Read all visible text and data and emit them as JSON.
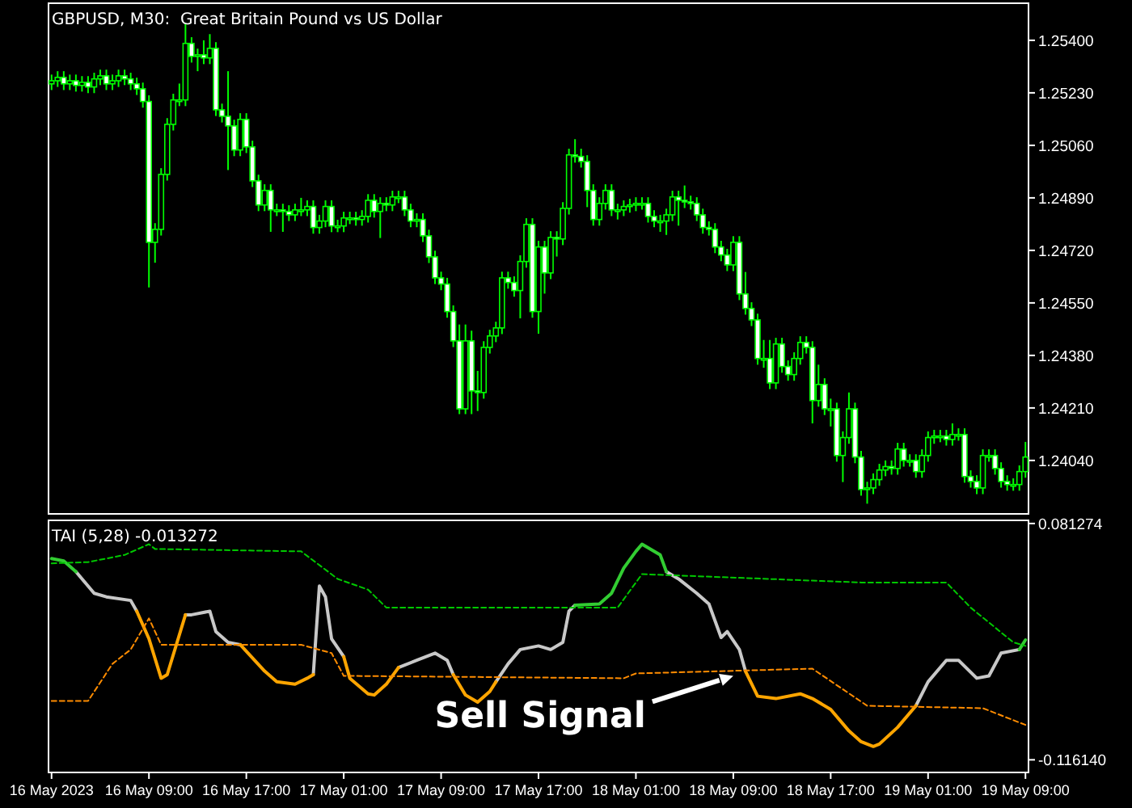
{
  "chart_data": [
    {
      "type": "candlestick",
      "title": "GBPUSD, M30:  Great Britain Pound vs US Dollar",
      "color": "#00ff00",
      "tick_labels": "y",
      "xlim": [
        "2023-05-16T00:45",
        "2023-05-19T09:15"
      ],
      "ylim": [
        1.23867,
        1.2552
      ],
      "yticks": [
        {
          "value": 1.254,
          "label": "1.25400"
        },
        {
          "value": 1.2523,
          "label": "1.25230"
        },
        {
          "value": 1.2506,
          "label": "1.25060"
        },
        {
          "value": 1.2489,
          "label": "1.24890"
        },
        {
          "value": 1.2472,
          "label": "1.24720"
        },
        {
          "value": 1.2455,
          "label": "1.24550"
        },
        {
          "value": 1.2438,
          "label": "1.24380"
        },
        {
          "value": 1.2421,
          "label": "1.24210"
        },
        {
          "value": 1.2404,
          "label": "1.24040"
        }
      ],
      "x": [
        "2023-05-16T01:00",
        "2023-05-16T01:30",
        "2023-05-16T02:00",
        "2023-05-16T02:30",
        "2023-05-16T03:00",
        "2023-05-16T03:30",
        "2023-05-16T04:00",
        "2023-05-16T04:30",
        "2023-05-16T05:00",
        "2023-05-16T05:30",
        "2023-05-16T06:00",
        "2023-05-16T06:30",
        "2023-05-16T07:00",
        "2023-05-16T07:30",
        "2023-05-16T08:00",
        "2023-05-16T08:30",
        "2023-05-16T09:00",
        "2023-05-16T09:30",
        "2023-05-16T10:00",
        "2023-05-16T10:30",
        "2023-05-16T11:00",
        "2023-05-16T11:30",
        "2023-05-16T12:00",
        "2023-05-16T12:30",
        "2023-05-16T13:00",
        "2023-05-16T13:30",
        "2023-05-16T14:00",
        "2023-05-16T14:30",
        "2023-05-16T15:00",
        "2023-05-16T15:30",
        "2023-05-16T16:00",
        "2023-05-16T16:30",
        "2023-05-16T17:00",
        "2023-05-16T17:30",
        "2023-05-16T18:00",
        "2023-05-16T18:30",
        "2023-05-16T19:00",
        "2023-05-16T19:30",
        "2023-05-16T20:00",
        "2023-05-16T20:30",
        "2023-05-16T21:00",
        "2023-05-16T21:30",
        "2023-05-16T22:00",
        "2023-05-16T22:30",
        "2023-05-16T23:00",
        "2023-05-16T23:30",
        "2023-05-17T00:00",
        "2023-05-17T00:30",
        "2023-05-17T01:00",
        "2023-05-17T01:30",
        "2023-05-17T02:00",
        "2023-05-17T02:30",
        "2023-05-17T03:00",
        "2023-05-17T03:30",
        "2023-05-17T04:00",
        "2023-05-17T04:30",
        "2023-05-17T05:00",
        "2023-05-17T05:30",
        "2023-05-17T06:00",
        "2023-05-17T06:30",
        "2023-05-17T07:00",
        "2023-05-17T07:30",
        "2023-05-17T08:00",
        "2023-05-17T08:30",
        "2023-05-17T09:00",
        "2023-05-17T09:30",
        "2023-05-17T10:00",
        "2023-05-17T10:30",
        "2023-05-17T11:00",
        "2023-05-17T11:30",
        "2023-05-17T12:00",
        "2023-05-17T12:30",
        "2023-05-17T13:00",
        "2023-05-17T13:30",
        "2023-05-17T14:00",
        "2023-05-17T14:30",
        "2023-05-17T15:00",
        "2023-05-17T15:30",
        "2023-05-17T16:00",
        "2023-05-17T16:30",
        "2023-05-17T17:00",
        "2023-05-17T17:30",
        "2023-05-17T18:00",
        "2023-05-17T18:30",
        "2023-05-17T19:00",
        "2023-05-17T19:30",
        "2023-05-17T20:00",
        "2023-05-17T20:30",
        "2023-05-17T21:00",
        "2023-05-17T21:30",
        "2023-05-17T22:00",
        "2023-05-17T22:30",
        "2023-05-17T23:00",
        "2023-05-17T23:30",
        "2023-05-18T00:00",
        "2023-05-18T00:30",
        "2023-05-18T01:00",
        "2023-05-18T01:30",
        "2023-05-18T02:00",
        "2023-05-18T02:30",
        "2023-05-18T03:00",
        "2023-05-18T03:30",
        "2023-05-18T04:00",
        "2023-05-18T04:30",
        "2023-05-18T05:00",
        "2023-05-18T05:30",
        "2023-05-18T06:00",
        "2023-05-18T06:30",
        "2023-05-18T07:00",
        "2023-05-18T07:30",
        "2023-05-18T08:00",
        "2023-05-18T08:30",
        "2023-05-18T09:00",
        "2023-05-18T09:30",
        "2023-05-18T10:00",
        "2023-05-18T10:30",
        "2023-05-18T11:00",
        "2023-05-18T11:30",
        "2023-05-18T12:00",
        "2023-05-18T12:30",
        "2023-05-18T13:00",
        "2023-05-18T13:30",
        "2023-05-18T14:00",
        "2023-05-18T14:30",
        "2023-05-18T15:00",
        "2023-05-18T15:30",
        "2023-05-18T16:00",
        "2023-05-18T16:30",
        "2023-05-18T17:00",
        "2023-05-18T17:30",
        "2023-05-18T18:00",
        "2023-05-18T18:30",
        "2023-05-18T19:00",
        "2023-05-18T19:30",
        "2023-05-18T20:00",
        "2023-05-18T20:30",
        "2023-05-18T21:00",
        "2023-05-18T21:30",
        "2023-05-18T22:00",
        "2023-05-18T22:30",
        "2023-05-18T23:00",
        "2023-05-18T23:30",
        "2023-05-19T00:00",
        "2023-05-19T00:30",
        "2023-05-19T01:00",
        "2023-05-19T01:30",
        "2023-05-19T02:00",
        "2023-05-19T02:30",
        "2023-05-19T03:00",
        "2023-05-19T03:30",
        "2023-05-19T04:00",
        "2023-05-19T04:30",
        "2023-05-19T05:00",
        "2023-05-19T05:30",
        "2023-05-19T06:00",
        "2023-05-19T06:30",
        "2023-05-19T07:00",
        "2023-05-19T07:30",
        "2023-05-19T08:00",
        "2023-05-19T08:30",
        "2023-05-19T09:00"
      ],
      "ohlc": [
        [
          1.25259,
          1.25289,
          1.25239,
          1.25269
        ],
        [
          1.25269,
          1.253,
          1.25249,
          1.2528
        ],
        [
          1.2528,
          1.253,
          1.25239,
          1.25259
        ],
        [
          1.25259,
          1.25289,
          1.25239,
          1.25269
        ],
        [
          1.25269,
          1.25289,
          1.25234,
          1.25254
        ],
        [
          1.25254,
          1.25284,
          1.25234,
          1.25264
        ],
        [
          1.25264,
          1.25284,
          1.25229,
          1.25249
        ],
        [
          1.25249,
          1.25295,
          1.25229,
          1.25275
        ],
        [
          1.25275,
          1.25305,
          1.25255,
          1.25285
        ],
        [
          1.25285,
          1.25305,
          1.25239,
          1.25259
        ],
        [
          1.25259,
          1.25289,
          1.25239,
          1.25269
        ],
        [
          1.25269,
          1.25305,
          1.25249,
          1.25285
        ],
        [
          1.25285,
          1.25305,
          1.25255,
          1.25275
        ],
        [
          1.25275,
          1.25295,
          1.25239,
          1.25259
        ],
        [
          1.25259,
          1.25279,
          1.25223,
          1.25243
        ],
        [
          1.25243,
          1.25263,
          1.25182,
          1.25202
        ],
        [
          1.25202,
          1.25222,
          1.246,
          1.24746
        ],
        [
          1.24746,
          1.24808,
          1.2468,
          1.24788
        ],
        [
          1.24788,
          1.24986,
          1.24768,
          1.24966
        ],
        [
          1.24966,
          1.25148,
          1.24946,
          1.25128
        ],
        [
          1.25128,
          1.25227,
          1.25108,
          1.25207
        ],
        [
          1.25207,
          1.2526,
          1.25187,
          1.25207
        ],
        [
          1.25207,
          1.25453,
          1.25187,
          1.2539
        ],
        [
          1.2539,
          1.2541,
          1.25328,
          1.25348
        ],
        [
          1.25348,
          1.25373,
          1.253,
          1.25353
        ],
        [
          1.25353,
          1.254,
          1.25323,
          1.25343
        ],
        [
          1.25343,
          1.2542,
          1.25323,
          1.25374
        ],
        [
          1.25374,
          1.25394,
          1.25155,
          1.25175
        ],
        [
          1.25175,
          1.25195,
          1.25134,
          1.25154
        ],
        [
          1.25154,
          1.253,
          1.2498,
          1.25123
        ],
        [
          1.25123,
          1.25143,
          1.25025,
          1.25045
        ],
        [
          1.25045,
          1.25164,
          1.25025,
          1.25144
        ],
        [
          1.25144,
          1.25164,
          1.25035,
          1.25055
        ],
        [
          1.25055,
          1.25075,
          1.24925,
          1.24945
        ],
        [
          1.24945,
          1.24965,
          1.24847,
          1.24867
        ],
        [
          1.24867,
          1.24934,
          1.24847,
          1.24914
        ],
        [
          1.24914,
          1.24934,
          1.2478,
          1.24851
        ],
        [
          1.24851,
          1.24871,
          1.24831,
          1.24851
        ],
        [
          1.24851,
          1.24871,
          1.2478,
          1.24846
        ],
        [
          1.24846,
          1.24866,
          1.24815,
          1.24835
        ],
        [
          1.24835,
          1.24871,
          1.24815,
          1.24851
        ],
        [
          1.24851,
          1.2489,
          1.24831,
          1.24851
        ],
        [
          1.24851,
          1.24882,
          1.24831,
          1.24862
        ],
        [
          1.24862,
          1.24882,
          1.24774,
          1.24794
        ],
        [
          1.24794,
          1.24835,
          1.24774,
          1.24815
        ],
        [
          1.24815,
          1.24882,
          1.24795,
          1.24862
        ],
        [
          1.24862,
          1.24882,
          1.24779,
          1.24799
        ],
        [
          1.24799,
          1.24819,
          1.24779,
          1.24799
        ],
        [
          1.24799,
          1.24845,
          1.24779,
          1.24825
        ],
        [
          1.24825,
          1.24845,
          1.24805,
          1.24825
        ],
        [
          1.24825,
          1.24845,
          1.248,
          1.2482
        ],
        [
          1.2482,
          1.2485,
          1.248,
          1.2483
        ],
        [
          1.2483,
          1.24902,
          1.2481,
          1.24882
        ],
        [
          1.24882,
          1.24902,
          1.24826,
          1.24846
        ],
        [
          1.24846,
          1.24892,
          1.2476,
          1.24872
        ],
        [
          1.24872,
          1.24892,
          1.24847,
          1.24867
        ],
        [
          1.24867,
          1.24913,
          1.24847,
          1.24893
        ],
        [
          1.24893,
          1.24913,
          1.24873,
          1.24893
        ],
        [
          1.24893,
          1.24913,
          1.24831,
          1.24851
        ],
        [
          1.24851,
          1.24871,
          1.24795,
          1.24815
        ],
        [
          1.24815,
          1.2484,
          1.24795,
          1.2482
        ],
        [
          1.2482,
          1.2484,
          1.24747,
          1.24767
        ],
        [
          1.24767,
          1.24787,
          1.24679,
          1.24699
        ],
        [
          1.24699,
          1.24719,
          1.24611,
          1.24631
        ],
        [
          1.24631,
          1.24651,
          1.24591,
          1.24611
        ],
        [
          1.24611,
          1.24631,
          1.24502,
          1.24522
        ],
        [
          1.24522,
          1.24542,
          1.24407,
          1.24427
        ],
        [
          1.24427,
          1.2448,
          1.2419,
          1.24207
        ],
        [
          1.24207,
          1.2448,
          1.2419,
          1.24427
        ],
        [
          1.24427,
          1.2446,
          1.2419,
          1.24265
        ],
        [
          1.24265,
          1.2433,
          1.242,
          1.2426
        ],
        [
          1.2426,
          1.24426,
          1.2424,
          1.24406
        ],
        [
          1.24406,
          1.24463,
          1.24386,
          1.24443
        ],
        [
          1.24443,
          1.24489,
          1.24423,
          1.24469
        ],
        [
          1.24469,
          1.24651,
          1.24449,
          1.24631
        ],
        [
          1.24631,
          1.24651,
          1.24596,
          1.24616
        ],
        [
          1.24616,
          1.24636,
          1.2457,
          1.2459
        ],
        [
          1.2459,
          1.24704,
          1.245,
          1.24684
        ],
        [
          1.24684,
          1.24824,
          1.24664,
          1.24804
        ],
        [
          1.24804,
          1.24824,
          1.24502,
          1.24522
        ],
        [
          1.24522,
          1.24751,
          1.2445,
          1.24731
        ],
        [
          1.24731,
          1.24751,
          1.2458,
          1.24647
        ],
        [
          1.24647,
          1.24782,
          1.24627,
          1.24762
        ],
        [
          1.24762,
          1.24782,
          1.247,
          1.24757
        ],
        [
          1.24757,
          1.24876,
          1.24737,
          1.24856
        ],
        [
          1.24856,
          1.25049,
          1.24836,
          1.25029
        ],
        [
          1.25029,
          1.2508,
          1.25004,
          1.25024
        ],
        [
          1.25024,
          1.25049,
          1.24988,
          1.25008
        ],
        [
          1.25008,
          1.25028,
          1.2486,
          1.24914
        ],
        [
          1.24914,
          1.24934,
          1.248,
          1.2482
        ],
        [
          1.2482,
          1.24892,
          1.248,
          1.24872
        ],
        [
          1.24872,
          1.24934,
          1.24852,
          1.24914
        ],
        [
          1.24914,
          1.24934,
          1.24831,
          1.24851
        ],
        [
          1.24851,
          1.24871,
          1.2482,
          1.24851
        ],
        [
          1.24851,
          1.24882,
          1.24831,
          1.24862
        ],
        [
          1.24862,
          1.24887,
          1.24842,
          1.24867
        ],
        [
          1.24867,
          1.24892,
          1.24847,
          1.24872
        ],
        [
          1.24872,
          1.24892,
          1.24852,
          1.24872
        ],
        [
          1.24872,
          1.24892,
          1.2481,
          1.2483
        ],
        [
          1.2483,
          1.2485,
          1.24795,
          1.24815
        ],
        [
          1.24815,
          1.24835,
          1.2478,
          1.24815
        ],
        [
          1.24815,
          1.24855,
          1.2477,
          1.24835
        ],
        [
          1.24835,
          1.24913,
          1.24815,
          1.24893
        ],
        [
          1.24893,
          1.24913,
          1.248,
          1.24882
        ],
        [
          1.24882,
          1.2493,
          1.24857,
          1.24877
        ],
        [
          1.24877,
          1.24897,
          1.24852,
          1.24872
        ],
        [
          1.24872,
          1.24892,
          1.24815,
          1.24835
        ],
        [
          1.24835,
          1.24855,
          1.24774,
          1.24794
        ],
        [
          1.24794,
          1.24814,
          1.24768,
          1.24788
        ],
        [
          1.24788,
          1.24808,
          1.24711,
          1.24731
        ],
        [
          1.24731,
          1.24751,
          1.24685,
          1.24705
        ],
        [
          1.24705,
          1.24725,
          1.24653,
          1.24673
        ],
        [
          1.24673,
          1.24766,
          1.24653,
          1.24746
        ],
        [
          1.24746,
          1.24766,
          1.24559,
          1.24579
        ],
        [
          1.24579,
          1.2465,
          1.24512,
          1.24532
        ],
        [
          1.24532,
          1.24552,
          1.24475,
          1.24495
        ],
        [
          1.24495,
          1.24515,
          1.2435,
          1.2437
        ],
        [
          1.2437,
          1.2443,
          1.2434,
          1.2437
        ],
        [
          1.2437,
          1.2443,
          1.24271,
          1.24291
        ],
        [
          1.24291,
          1.24437,
          1.24271,
          1.24417
        ],
        [
          1.24417,
          1.24437,
          1.24324,
          1.24344
        ],
        [
          1.24344,
          1.24364,
          1.24298,
          1.24318
        ],
        [
          1.24318,
          1.2439,
          1.24298,
          1.2437
        ],
        [
          1.2437,
          1.24442,
          1.2435,
          1.24422
        ],
        [
          1.24422,
          1.24442,
          1.24386,
          1.24406
        ],
        [
          1.24406,
          1.24426,
          1.2416,
          1.24234
        ],
        [
          1.24234,
          1.2435,
          1.24214,
          1.24286
        ],
        [
          1.24286,
          1.24306,
          1.24187,
          1.24207
        ],
        [
          1.24207,
          1.2424,
          1.2415,
          1.24207
        ],
        [
          1.24207,
          1.24227,
          1.24036,
          1.24056
        ],
        [
          1.24056,
          1.24134,
          1.2397,
          1.24114
        ],
        [
          1.24114,
          1.2426,
          1.24094,
          1.24207
        ],
        [
          1.24207,
          1.24227,
          1.24031,
          1.24051
        ],
        [
          1.24051,
          1.24071,
          1.23926,
          1.23946
        ],
        [
          1.23946,
          1.23971,
          1.239,
          1.23951
        ],
        [
          1.23951,
          1.23998,
          1.23931,
          1.23978
        ],
        [
          1.23978,
          1.24029,
          1.23958,
          1.24009
        ],
        [
          1.24009,
          1.2404,
          1.23989,
          1.2402
        ],
        [
          1.2402,
          1.2404,
          1.23994,
          1.24014
        ],
        [
          1.24014,
          1.24097,
          1.23994,
          1.24077
        ],
        [
          1.24077,
          1.24097,
          1.2402,
          1.2404
        ],
        [
          1.2404,
          1.2406,
          1.2402,
          1.2404
        ],
        [
          1.2404,
          1.2406,
          1.23984,
          1.24004
        ],
        [
          1.24004,
          1.24076,
          1.23984,
          1.24056
        ],
        [
          1.24056,
          1.24134,
          1.24036,
          1.24114
        ],
        [
          1.24114,
          1.24139,
          1.24094,
          1.24119
        ],
        [
          1.24119,
          1.24139,
          1.24099,
          1.24119
        ],
        [
          1.24119,
          1.24139,
          1.24088,
          1.24108
        ],
        [
          1.24108,
          1.2416,
          1.24088,
          1.24124
        ],
        [
          1.24124,
          1.24144,
          1.24104,
          1.24124
        ],
        [
          1.24124,
          1.24144,
          1.23968,
          1.23988
        ],
        [
          1.23988,
          1.24008,
          1.23952,
          1.23972
        ],
        [
          1.23972,
          1.23992,
          1.23931,
          1.23951
        ],
        [
          1.23951,
          1.24076,
          1.23931,
          1.24056
        ],
        [
          1.24056,
          1.24076,
          1.24036,
          1.24056
        ],
        [
          1.24056,
          1.24076,
          1.23994,
          1.24014
        ],
        [
          1.24014,
          1.24034,
          1.23952,
          1.23972
        ],
        [
          1.23972,
          1.23992,
          1.23942,
          1.23962
        ],
        [
          1.23962,
          1.23982,
          1.23942,
          1.23962
        ],
        [
          1.23962,
          1.24024,
          1.23942,
          1.24004
        ],
        [
          1.24004,
          1.241,
          1.23984,
          1.24051
        ]
      ]
    },
    {
      "type": "line",
      "title": "TAI (5,28) -0.013272",
      "xlim": [
        "2023-05-16T00:45",
        "2023-05-19T09:15"
      ],
      "ylim": [
        -0.1267,
        0.0839
      ],
      "xticks": [
        {
          "value": "2023-05-16T01:00",
          "label": "16 May 2023"
        },
        {
          "value": "2023-05-16T09:00",
          "label": "16 May 09:00"
        },
        {
          "value": "2023-05-16T17:00",
          "label": "16 May 17:00"
        },
        {
          "value": "2023-05-17T01:00",
          "label": "17 May 01:00"
        },
        {
          "value": "2023-05-17T09:00",
          "label": "17 May 09:00"
        },
        {
          "value": "2023-05-17T17:00",
          "label": "17 May 17:00"
        },
        {
          "value": "2023-05-18T01:00",
          "label": "18 May 01:00"
        },
        {
          "value": "2023-05-18T09:00",
          "label": "18 May 09:00"
        },
        {
          "value": "2023-05-18T17:00",
          "label": "18 May 17:00"
        },
        {
          "value": "2023-05-19T01:00",
          "label": "19 May 01:00"
        },
        {
          "value": "2023-05-19T09:00",
          "label": "19 May 09:00"
        }
      ],
      "yticks": [
        0.081274,
        {
          "value": -0.11614,
          "label": "-0.116140"
        }
      ],
      "x": [
        "2023-05-16T01:00",
        "2023-05-16T02:00",
        "2023-05-16T03:00",
        "2023-05-16T04:30",
        "2023-05-16T05:30",
        "2023-05-16T07:30",
        "2023-05-16T08:00",
        "2023-05-16T09:00",
        "2023-05-16T10:00",
        "2023-05-16T10:30",
        "2023-05-16T12:00",
        "2023-05-16T12:30",
        "2023-05-16T14:00",
        "2023-05-16T14:30",
        "2023-05-16T15:30",
        "2023-05-16T16:30",
        "2023-05-16T18:30",
        "2023-05-16T19:30",
        "2023-05-16T21:00",
        "2023-05-16T22:00",
        "2023-05-16T22:30",
        "2023-05-16T23:00",
        "2023-05-16T23:30",
        "2023-05-17T00:00",
        "2023-05-17T01:00",
        "2023-05-17T01:30",
        "2023-05-17T03:00",
        "2023-05-17T03:30",
        "2023-05-17T04:30",
        "2023-05-17T05:30",
        "2023-05-17T07:00",
        "2023-05-17T08:30",
        "2023-05-17T09:30",
        "2023-05-17T10:00",
        "2023-05-17T11:00",
        "2023-05-17T12:00",
        "2023-05-17T13:00",
        "2023-05-17T13:30",
        "2023-05-17T14:30",
        "2023-05-17T15:30",
        "2023-05-17T17:00",
        "2023-05-17T18:00",
        "2023-05-17T19:00",
        "2023-05-17T19:30",
        "2023-05-17T20:00",
        "2023-05-17T22:00",
        "2023-05-17T23:00",
        "2023-05-18T00:00",
        "2023-05-18T01:00",
        "2023-05-18T01:30",
        "2023-05-18T03:00",
        "2023-05-18T03:30",
        "2023-05-18T04:30",
        "2023-05-18T06:00",
        "2023-05-18T07:00",
        "2023-05-18T08:00",
        "2023-05-18T08:30",
        "2023-05-18T09:30",
        "2023-05-18T10:00",
        "2023-05-18T11:00",
        "2023-05-18T12:30",
        "2023-05-18T14:30",
        "2023-05-18T15:30",
        "2023-05-18T17:00",
        "2023-05-18T18:30",
        "2023-05-18T19:30",
        "2023-05-18T20:30",
        "2023-05-18T21:00",
        "2023-05-18T22:30",
        "2023-05-19T00:00",
        "2023-05-19T01:00",
        "2023-05-19T02:30",
        "2023-05-19T03:30",
        "2023-05-19T05:00",
        "2023-05-19T06:00",
        "2023-05-19T07:00",
        "2023-05-19T08:30",
        "2023-05-19T09:00"
      ],
      "series": [
        {
          "color": "#c8c8c8",
          "values": [
            null,
            null,
            0.041,
            0.023,
            0.02,
            0.017,
            0.008,
            null,
            null,
            null,
            0.005,
            0.005,
            0.008,
            -0.009,
            -0.018,
            -0.02,
            null,
            null,
            null,
            null,
            -0.045,
            0.029,
            0.02,
            -0.015,
            -0.03,
            null,
            null,
            null,
            null,
            -0.039,
            -0.033,
            -0.027,
            -0.033,
            -0.045,
            null,
            null,
            null,
            -0.051,
            -0.036,
            -0.024,
            -0.021,
            -0.024,
            -0.018,
            0.008,
            0.013,
            null,
            null,
            null,
            null,
            null,
            null,
            0.041,
            0.035,
            0.023,
            0.014,
            -0.014,
            -0.009,
            -0.024,
            -0.042,
            null,
            null,
            null,
            null,
            null,
            null,
            null,
            null,
            null,
            null,
            -0.071,
            -0.051,
            -0.033,
            -0.033,
            -0.048,
            -0.046,
            -0.027,
            -0.024,
            null
          ]
        },
        {
          "color": "#ffa500",
          "values": [
            null,
            null,
            null,
            null,
            null,
            null,
            0.008,
            -0.015,
            -0.048,
            -0.045,
            0.005,
            null,
            null,
            null,
            null,
            -0.02,
            -0.042,
            -0.051,
            -0.053,
            -0.048,
            -0.045,
            null,
            null,
            null,
            -0.03,
            -0.048,
            -0.061,
            -0.062,
            -0.053,
            -0.039,
            null,
            null,
            null,
            -0.045,
            -0.062,
            -0.068,
            -0.059,
            -0.051,
            null,
            null,
            null,
            null,
            null,
            null,
            null,
            null,
            null,
            null,
            null,
            null,
            null,
            null,
            null,
            null,
            null,
            null,
            null,
            null,
            -0.042,
            -0.063,
            -0.065,
            -0.061,
            -0.065,
            -0.074,
            -0.092,
            -0.101,
            -0.105,
            -0.103,
            -0.089,
            -0.071,
            null,
            null,
            null,
            null,
            null,
            null,
            null,
            null
          ]
        },
        {
          "color": "#32cd32",
          "values": [
            0.052,
            0.05,
            0.041,
            null,
            null,
            null,
            null,
            null,
            null,
            null,
            null,
            null,
            null,
            null,
            null,
            null,
            null,
            null,
            null,
            null,
            null,
            null,
            null,
            null,
            null,
            null,
            null,
            null,
            null,
            null,
            null,
            null,
            null,
            null,
            null,
            null,
            null,
            null,
            null,
            null,
            null,
            null,
            null,
            null,
            0.013,
            0.014,
            0.023,
            0.044,
            0.058,
            0.064,
            0.055,
            0.041,
            null,
            null,
            null,
            null,
            null,
            null,
            null,
            null,
            null,
            null,
            null,
            null,
            null,
            null,
            null,
            null,
            null,
            null,
            null,
            null,
            null,
            null,
            null,
            null,
            -0.024,
            -0.016
          ]
        },
        {
          "color": "#00c800",
          "line_style": "dashed",
          "x": [
            "2023-05-16T01:00",
            "2023-05-16T04:00",
            "2023-05-16T07:00",
            "2023-05-16T09:00",
            "2023-05-16T09:30",
            "2023-05-16T21:30",
            "2023-05-17T00:30",
            "2023-05-17T03:00",
            "2023-05-17T04:30",
            "2023-05-17T23:30",
            "2023-05-18T01:30",
            "2023-05-18T19:30",
            "2023-05-19T02:30",
            "2023-05-19T04:30",
            "2023-05-19T08:00",
            "2023-05-19T09:00"
          ],
          "values": [
            0.048,
            0.049,
            0.055,
            0.064,
            0.06,
            0.058,
            0.035,
            0.026,
            0.011,
            0.011,
            0.039,
            0.032,
            0.032,
            0.011,
            -0.018,
            -0.021
          ]
        },
        {
          "color": "#ff8c00",
          "line_style": "dashed",
          "x": [
            "2023-05-16T01:00",
            "2023-05-16T04:00",
            "2023-05-16T06:00",
            "2023-05-16T07:30",
            "2023-05-16T09:00",
            "2023-05-16T10:00",
            "2023-05-16T21:30",
            "2023-05-17T00:00",
            "2023-05-17T01:00",
            "2023-05-18T00:00",
            "2023-05-18T01:00",
            "2023-05-18T15:30",
            "2023-05-18T20:00",
            "2023-05-19T05:30",
            "2023-05-19T09:00"
          ],
          "values": [
            -0.067,
            -0.067,
            -0.036,
            -0.024,
            0.002,
            -0.02,
            -0.02,
            -0.027,
            -0.046,
            -0.048,
            -0.044,
            -0.04,
            -0.071,
            -0.073,
            -0.087
          ]
        }
      ],
      "annotations": [
        {
          "text": "Sell Signal",
          "x": "2023-05-18T09:00",
          "y": -0.046
        }
      ]
    }
  ]
}
